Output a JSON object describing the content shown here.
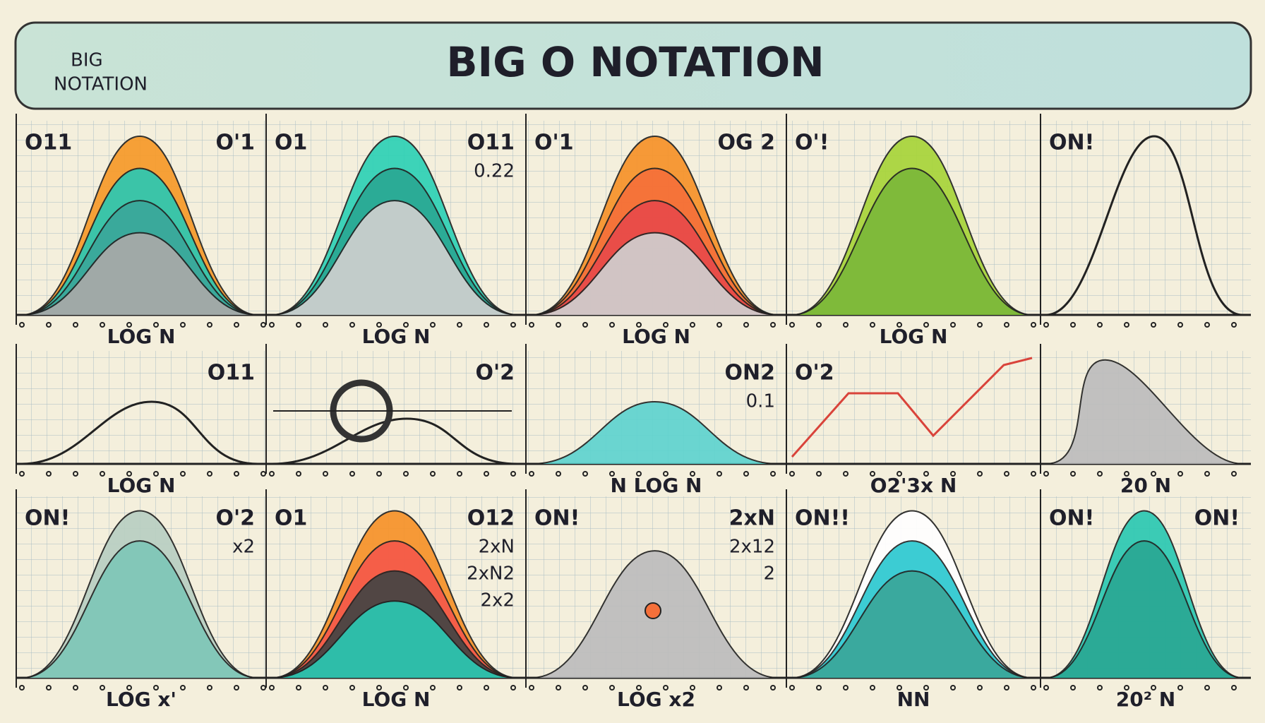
{
  "header": {
    "title": "BIG O NOTATION",
    "label_lines": [
      "BIG",
      "NOTATION"
    ]
  },
  "panels": [
    {
      "tl": "O11",
      "tr": "O'1",
      "caption": "LOG N"
    },
    {
      "tl": "O1",
      "tr": "O11",
      "extra": [
        "0.22"
      ],
      "caption": "LOG N"
    },
    {
      "tl": "O'1",
      "tr": "OG 2",
      "caption": "LOG N"
    },
    {
      "tl": "O'!",
      "caption": "LOG N"
    },
    {
      "tl": "ON!"
    },
    {
      "tr": "O11",
      "caption": "LOG N"
    },
    {
      "tr": "O'2"
    },
    {
      "tr": "ON2",
      "extra": [
        "0.1"
      ],
      "caption": "N LOG N"
    },
    {
      "tl": "O'2",
      "caption": "O2'3x N"
    },
    {
      "caption": "20 N"
    },
    {
      "tl": "ON!",
      "tr": "O'2",
      "extra": [
        "x2"
      ],
      "caption": "LOG x'"
    },
    {
      "tl": "O1",
      "tr": "O12",
      "extra": [
        "2xN",
        "2xN2",
        "2x2"
      ],
      "caption": "LOG N"
    },
    {
      "tl": "ON!",
      "tr": "2xN",
      "extra": [
        "2x12",
        "2"
      ],
      "caption": "LOG x2"
    },
    {
      "tl": "ON!!",
      "caption": "NN"
    },
    {
      "tl": "ON!",
      "tr": "ON!",
      "caption": "20² N"
    }
  ]
}
